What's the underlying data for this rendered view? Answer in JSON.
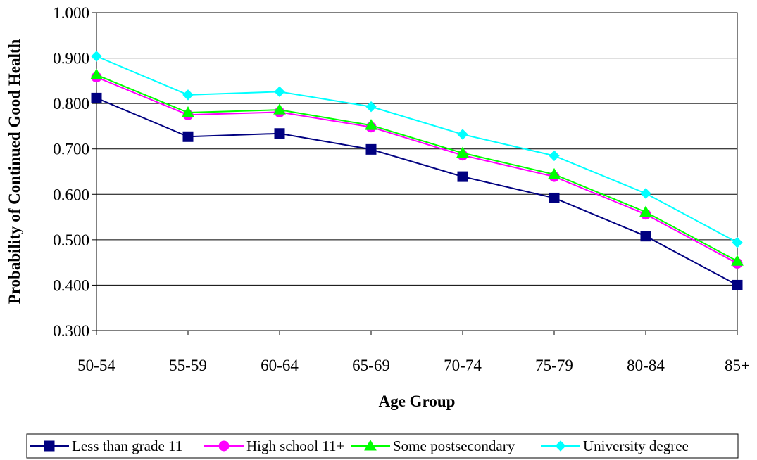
{
  "chart_data": {
    "type": "line",
    "title": "",
    "xlabel": "Age Group",
    "ylabel": "Probability of Continued Good Health",
    "categories": [
      "50-54",
      "55-59",
      "60-64",
      "65-69",
      "70-74",
      "75-79",
      "80-84",
      "85+"
    ],
    "ylim": [
      0.3,
      1.0
    ],
    "yticks": [
      "0.300",
      "0.400",
      "0.500",
      "0.600",
      "0.700",
      "0.800",
      "0.900",
      "1.000"
    ],
    "grid": "horizontal",
    "legend_position": "bottom",
    "series": [
      {
        "name": "Less than grade 11",
        "color": "#000080",
        "marker": "square",
        "values": [
          0.812,
          0.727,
          0.734,
          0.699,
          0.639,
          0.592,
          0.508,
          0.4
        ]
      },
      {
        "name": "High school 11+",
        "color": "#FF00FF",
        "marker": "circle",
        "values": [
          0.858,
          0.775,
          0.781,
          0.748,
          0.686,
          0.639,
          0.556,
          0.448
        ]
      },
      {
        "name": "Some postsecondary",
        "color": "#00FF00",
        "marker": "triangle",
        "values": [
          0.863,
          0.78,
          0.786,
          0.752,
          0.691,
          0.644,
          0.561,
          0.453
        ]
      },
      {
        "name": "University degree",
        "color": "#00FFFF",
        "marker": "diamond",
        "values": [
          0.904,
          0.819,
          0.826,
          0.793,
          0.732,
          0.685,
          0.602,
          0.494
        ]
      }
    ]
  }
}
